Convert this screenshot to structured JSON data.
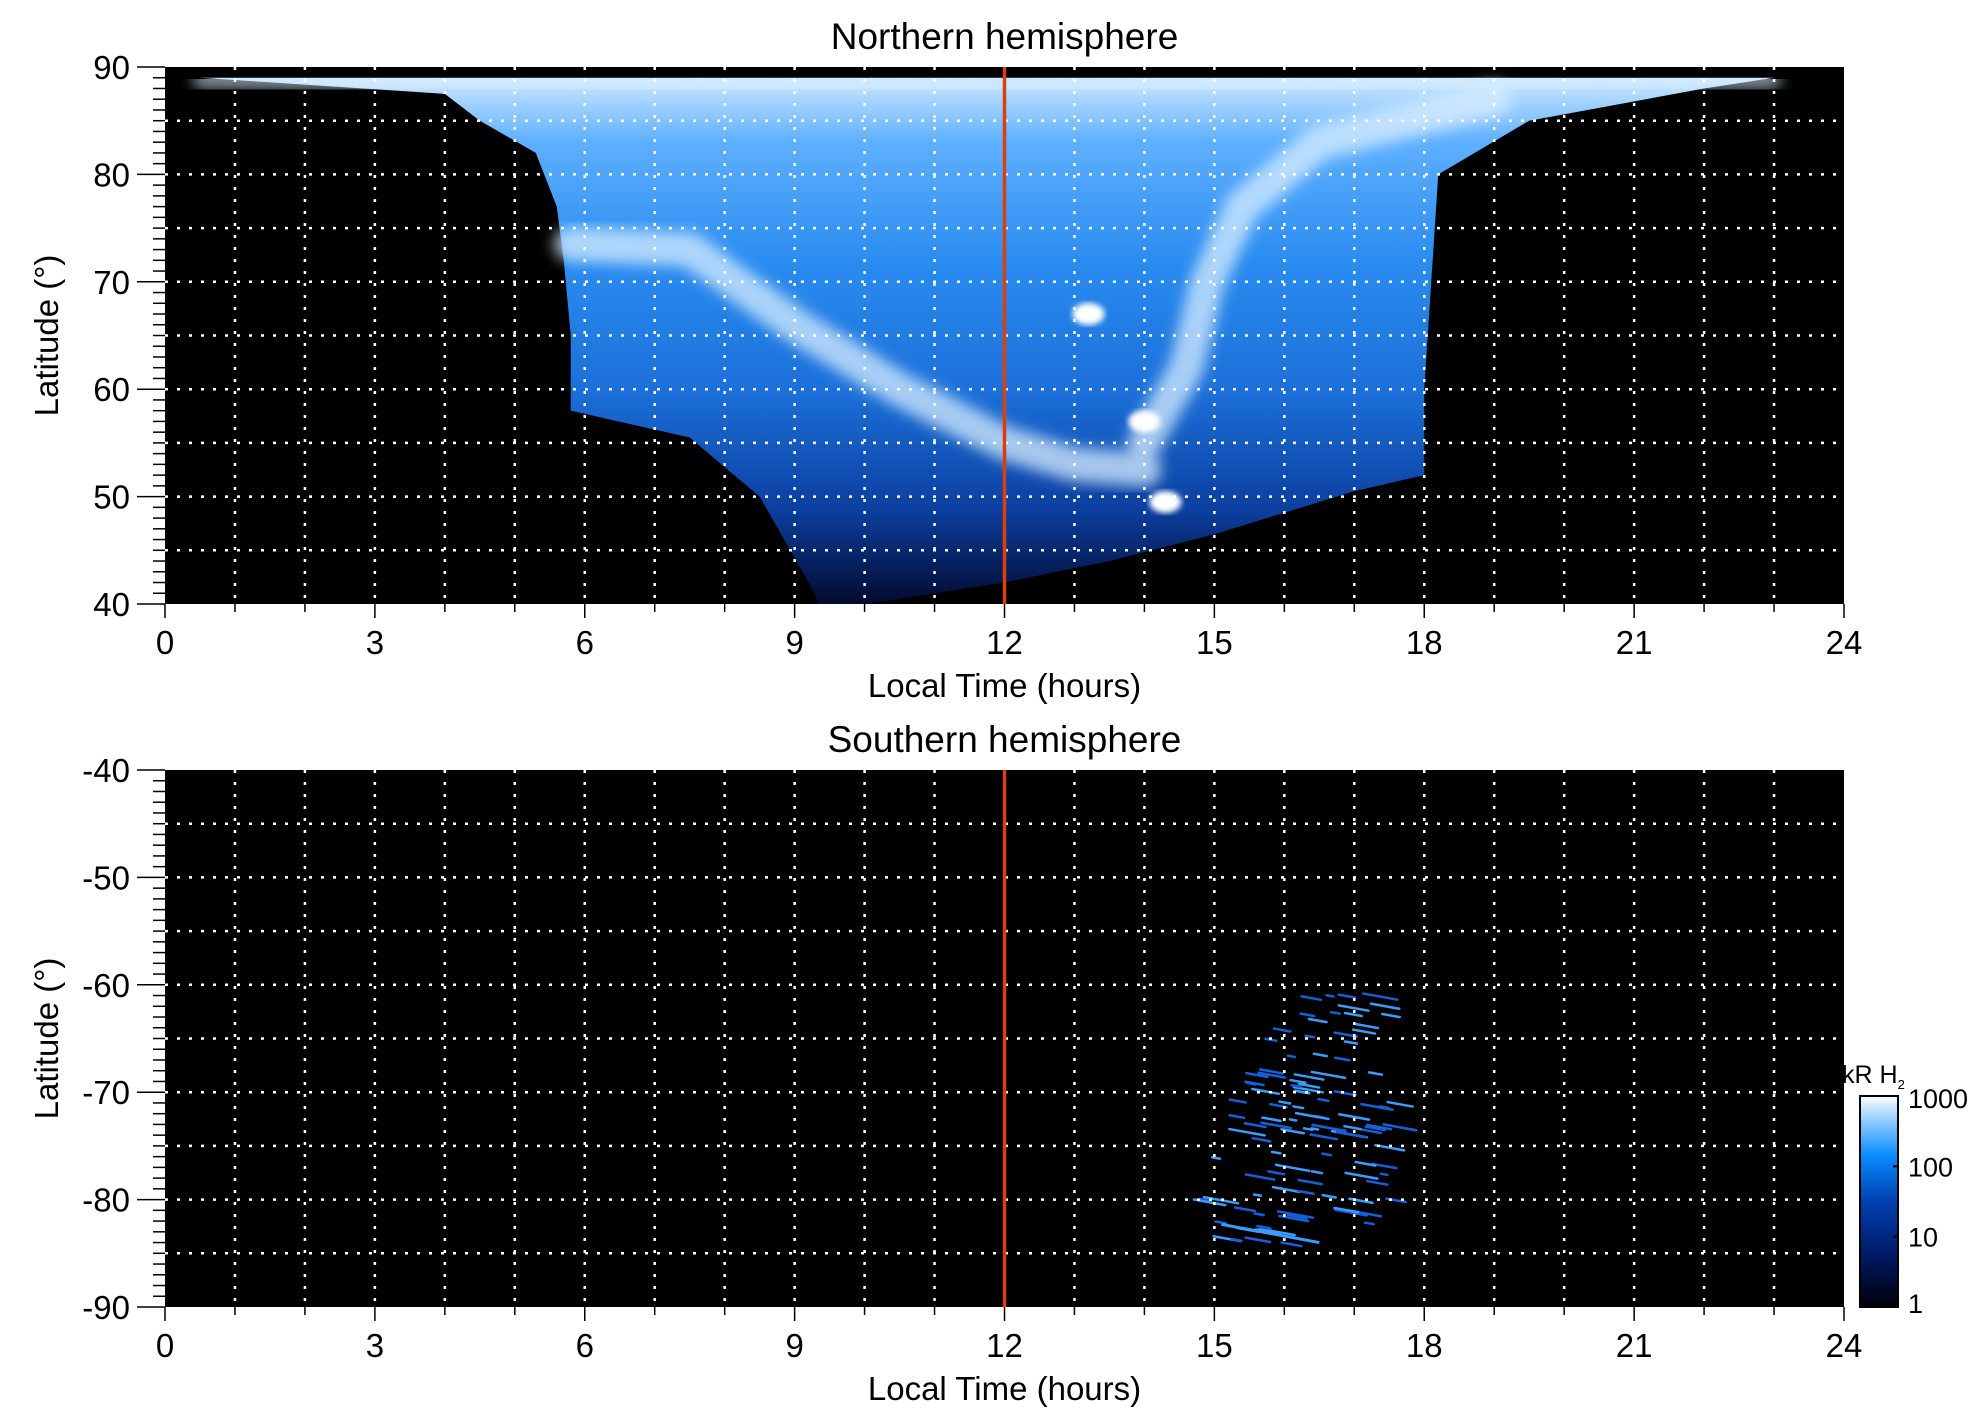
{
  "chart_data": [
    {
      "type": "heatmap",
      "title": "Northern hemisphere",
      "xlabel": "Local Time (hours)",
      "ylabel": "Latitude (°)",
      "xlim": [
        0,
        24
      ],
      "ylim": [
        40,
        90
      ],
      "xticks": [
        "0",
        "3",
        "6",
        "9",
        "12",
        "15",
        "18",
        "21",
        "24"
      ],
      "yticks": [
        "90",
        "80",
        "70",
        "60",
        "50",
        "40"
      ],
      "grid": true,
      "reference_line": {
        "x": 12,
        "color": "#d9400f"
      },
      "emission_boundary": [
        [
          0.5,
          89
        ],
        [
          4,
          87.5
        ],
        [
          4.5,
          85
        ],
        [
          5.3,
          82
        ],
        [
          5.6,
          77
        ],
        [
          5.7,
          72
        ],
        [
          5.8,
          65
        ],
        [
          5.8,
          58
        ],
        [
          7.5,
          55.5
        ],
        [
          8.5,
          50
        ],
        [
          9.2,
          42
        ],
        [
          9.35,
          40
        ],
        [
          10,
          40
        ],
        [
          11,
          41
        ],
        [
          12,
          42
        ],
        [
          13.5,
          44
        ],
        [
          15,
          46.5
        ],
        [
          17,
          50.5
        ],
        [
          18,
          52
        ],
        [
          18,
          60
        ],
        [
          18.1,
          70
        ],
        [
          18.2,
          80
        ],
        [
          19.5,
          85
        ],
        [
          22,
          88
        ],
        [
          23,
          89
        ]
      ],
      "bright_arcs": [
        [
          [
            5.8,
            73.5
          ],
          [
            7.5,
            73
          ],
          [
            9,
            66
          ],
          [
            10.5,
            60
          ],
          [
            12,
            55
          ],
          [
            13,
            53
          ],
          [
            14,
            52.5
          ]
        ],
        [
          [
            14,
            55
          ],
          [
            14.6,
            62
          ],
          [
            14.9,
            70
          ],
          [
            15.4,
            77
          ],
          [
            16.5,
            83
          ],
          [
            19,
            87
          ]
        ],
        [
          [
            0.5,
            88.8
          ],
          [
            6,
            88.5
          ],
          [
            12,
            88
          ],
          [
            18,
            88.5
          ],
          [
            23,
            88.8
          ]
        ]
      ],
      "bright_spots": [
        [
          13.2,
          67
        ],
        [
          14,
          57
        ],
        [
          14.3,
          49.5
        ]
      ]
    },
    {
      "type": "heatmap",
      "title": "Southern hemisphere",
      "xlabel": "Local Time (hours)",
      "ylabel": "Latitude (°)",
      "xlim": [
        0,
        24
      ],
      "ylim": [
        -90,
        -40
      ],
      "xticks": [
        "0",
        "3",
        "6",
        "9",
        "12",
        "15",
        "18",
        "21",
        "24"
      ],
      "yticks": [
        "-40",
        "-50",
        "-60",
        "-70",
        "-80",
        "-90"
      ],
      "grid": true,
      "reference_line": {
        "x": 12,
        "color": "#d9400f"
      },
      "emission_region": {
        "lt": [
          14.5,
          17.5
        ],
        "lat": [
          -84,
          -60
        ]
      }
    }
  ],
  "colorbar": {
    "label": "kR H",
    "label_sub": "2",
    "ticks": [
      "1000",
      "100",
      "10",
      "1"
    ],
    "scale": "log",
    "range": [
      1,
      1000
    ],
    "colors": [
      "#000008",
      "#001a66",
      "#0040b0",
      "#0a8cff",
      "#8fcaff",
      "#ffffff"
    ]
  }
}
